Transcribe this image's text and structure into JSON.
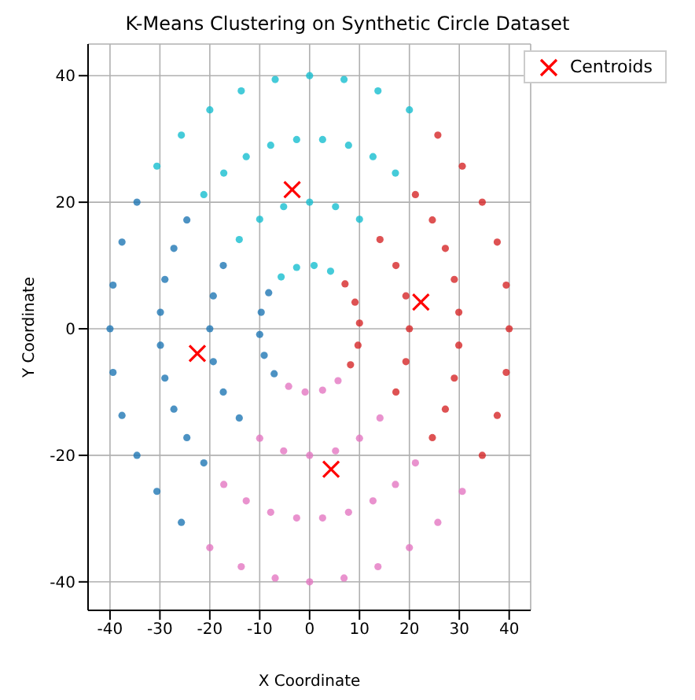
{
  "chart_data": {
    "type": "scatter",
    "title": "K-Means Clustering on Synthetic Circle Dataset",
    "xlabel": "X Coordinate",
    "ylabel": "Y Coordinate",
    "xlim": [
      -44.4,
      44.3
    ],
    "ylim": [
      -44.5,
      45
    ],
    "xticks": [
      -40,
      -30,
      -20,
      -10,
      0,
      10,
      20,
      30,
      40
    ],
    "yticks": [
      -40,
      -20,
      0,
      20,
      40
    ],
    "grid": true,
    "legend": "top right",
    "marker": "circle",
    "series": [
      {
        "color": "#17becf",
        "x": [
          4.2,
          0.9,
          -2.6,
          -5.7,
          10,
          5.2,
          0,
          -5.2,
          -10,
          -14.1,
          17.2,
          12.7,
          7.8,
          2.6,
          -2.6,
          -7.8,
          -12.7,
          -17.2,
          -21.2,
          20,
          13.7,
          6.9,
          0,
          -6.9,
          -13.7,
          -20,
          -25.7,
          -30.6
        ],
        "values": [
          9.1,
          10,
          9.7,
          8.2,
          17.3,
          19.3,
          20,
          19.3,
          17.3,
          14.1,
          24.6,
          27.2,
          29,
          29.9,
          29.9,
          29,
          27.2,
          24.6,
          21.2,
          34.6,
          37.6,
          39.4,
          40,
          39.4,
          37.6,
          34.6,
          30.6,
          25.7
        ]
      },
      {
        "color": "#d62728",
        "x": [
          10,
          9.1,
          7.1,
          8.2,
          9.7,
          20,
          19.3,
          17.3,
          14.1,
          17.3,
          19.3,
          29.9,
          29,
          27.2,
          24.6,
          21.2,
          24.6,
          27.2,
          29,
          29.9,
          40,
          39.4,
          37.6,
          34.6,
          30.6,
          25.7,
          34.6,
          37.6,
          39.4
        ],
        "values": [
          0.9,
          4.2,
          7.1,
          -5.7,
          -2.6,
          0,
          5.2,
          10,
          14.1,
          -10,
          -5.2,
          2.6,
          7.8,
          12.7,
          17.2,
          21.2,
          -17.2,
          -12.7,
          -7.8,
          -2.6,
          0,
          6.9,
          13.7,
          20,
          25.7,
          30.6,
          -20,
          -13.7,
          -6.9
        ]
      },
      {
        "color": "#e377c2",
        "x": [
          -4.2,
          -0.9,
          2.6,
          5.7,
          -10,
          -5.2,
          0,
          5.2,
          10,
          14.1,
          -17.2,
          -12.7,
          -7.8,
          -2.6,
          2.6,
          7.8,
          12.7,
          17.2,
          21.2,
          -20,
          -13.7,
          -6.9,
          0,
          6.9,
          13.7,
          20,
          25.7,
          30.6
        ],
        "values": [
          -9.1,
          -10,
          -9.7,
          -8.2,
          -17.3,
          -19.3,
          -20,
          -19.3,
          -17.3,
          -14.1,
          -24.6,
          -27.2,
          -29,
          -29.9,
          -29.9,
          -29,
          -27.2,
          -24.6,
          -21.2,
          -34.6,
          -37.6,
          -39.4,
          -40,
          -39.4,
          -37.6,
          -34.6,
          -30.6,
          -25.7
        ]
      },
      {
        "color": "#1f77b4",
        "x": [
          -8.2,
          -9.7,
          -10,
          -9.1,
          -7.1,
          -17.3,
          -19.3,
          -20,
          -19.3,
          -17.3,
          -14.1,
          -24.6,
          -27.2,
          -29,
          -29.9,
          -29.9,
          -29,
          -27.2,
          -24.6,
          -21.2,
          -34.6,
          -37.6,
          -39.4,
          -40,
          -39.4,
          -37.6,
          -34.6,
          -30.6,
          -25.7
        ],
        "values": [
          5.7,
          2.6,
          -0.9,
          -4.2,
          -7.1,
          10,
          5.2,
          0,
          -5.2,
          -10,
          -14.1,
          17.2,
          12.7,
          7.8,
          2.6,
          -2.6,
          -7.8,
          -12.7,
          -17.2,
          -21.2,
          20,
          13.7,
          6.9,
          0,
          -6.9,
          -13.7,
          -20,
          -25.7,
          -30.6
        ]
      },
      {
        "name": "Centroids",
        "color": "#ff0000",
        "marker": "cross",
        "x": [
          -3.5,
          22.3,
          4.3,
          -22.5
        ],
        "values": [
          22,
          4.2,
          -22.2,
          -3.9
        ]
      }
    ]
  }
}
